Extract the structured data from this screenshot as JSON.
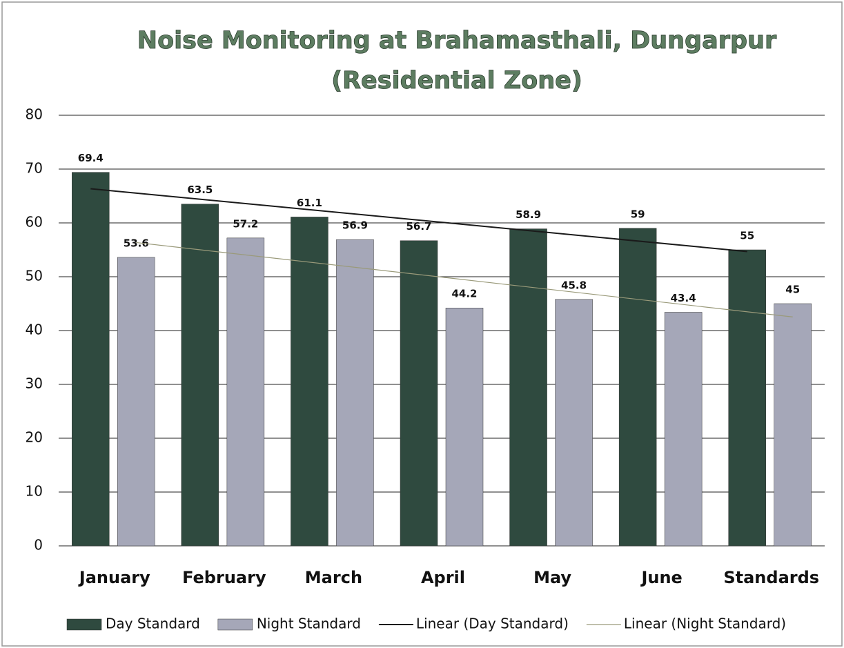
{
  "chart_data": {
    "type": "bar",
    "title": "Noise Monitoring at Brahamasthali, Dungarpur",
    "subtitle": "(Residential Zone)",
    "categories": [
      "January",
      "February",
      "March",
      "April",
      "May",
      "June",
      "Standards"
    ],
    "series": [
      {
        "name": "Day Standard",
        "color": "#2f4a3f",
        "values": [
          69.4,
          63.5,
          61.1,
          56.7,
          58.9,
          59,
          55
        ]
      },
      {
        "name": "Night Standard",
        "color": "#a5a7b8",
        "values": [
          53.6,
          57.2,
          56.9,
          44.2,
          45.8,
          43.4,
          45
        ]
      }
    ],
    "trendlines": [
      {
        "name": "Linear (Day Standard)",
        "type": "linear",
        "series": 0,
        "color": "#1a1a1a"
      },
      {
        "name": "Linear (Night Standard)",
        "type": "linear",
        "series": 1,
        "color": "#9a9a7a"
      }
    ],
    "ylim": [
      0,
      80
    ],
    "yticks": [
      0,
      10,
      20,
      30,
      40,
      50,
      60,
      70,
      80
    ],
    "grid": true,
    "legend": "bottom"
  }
}
